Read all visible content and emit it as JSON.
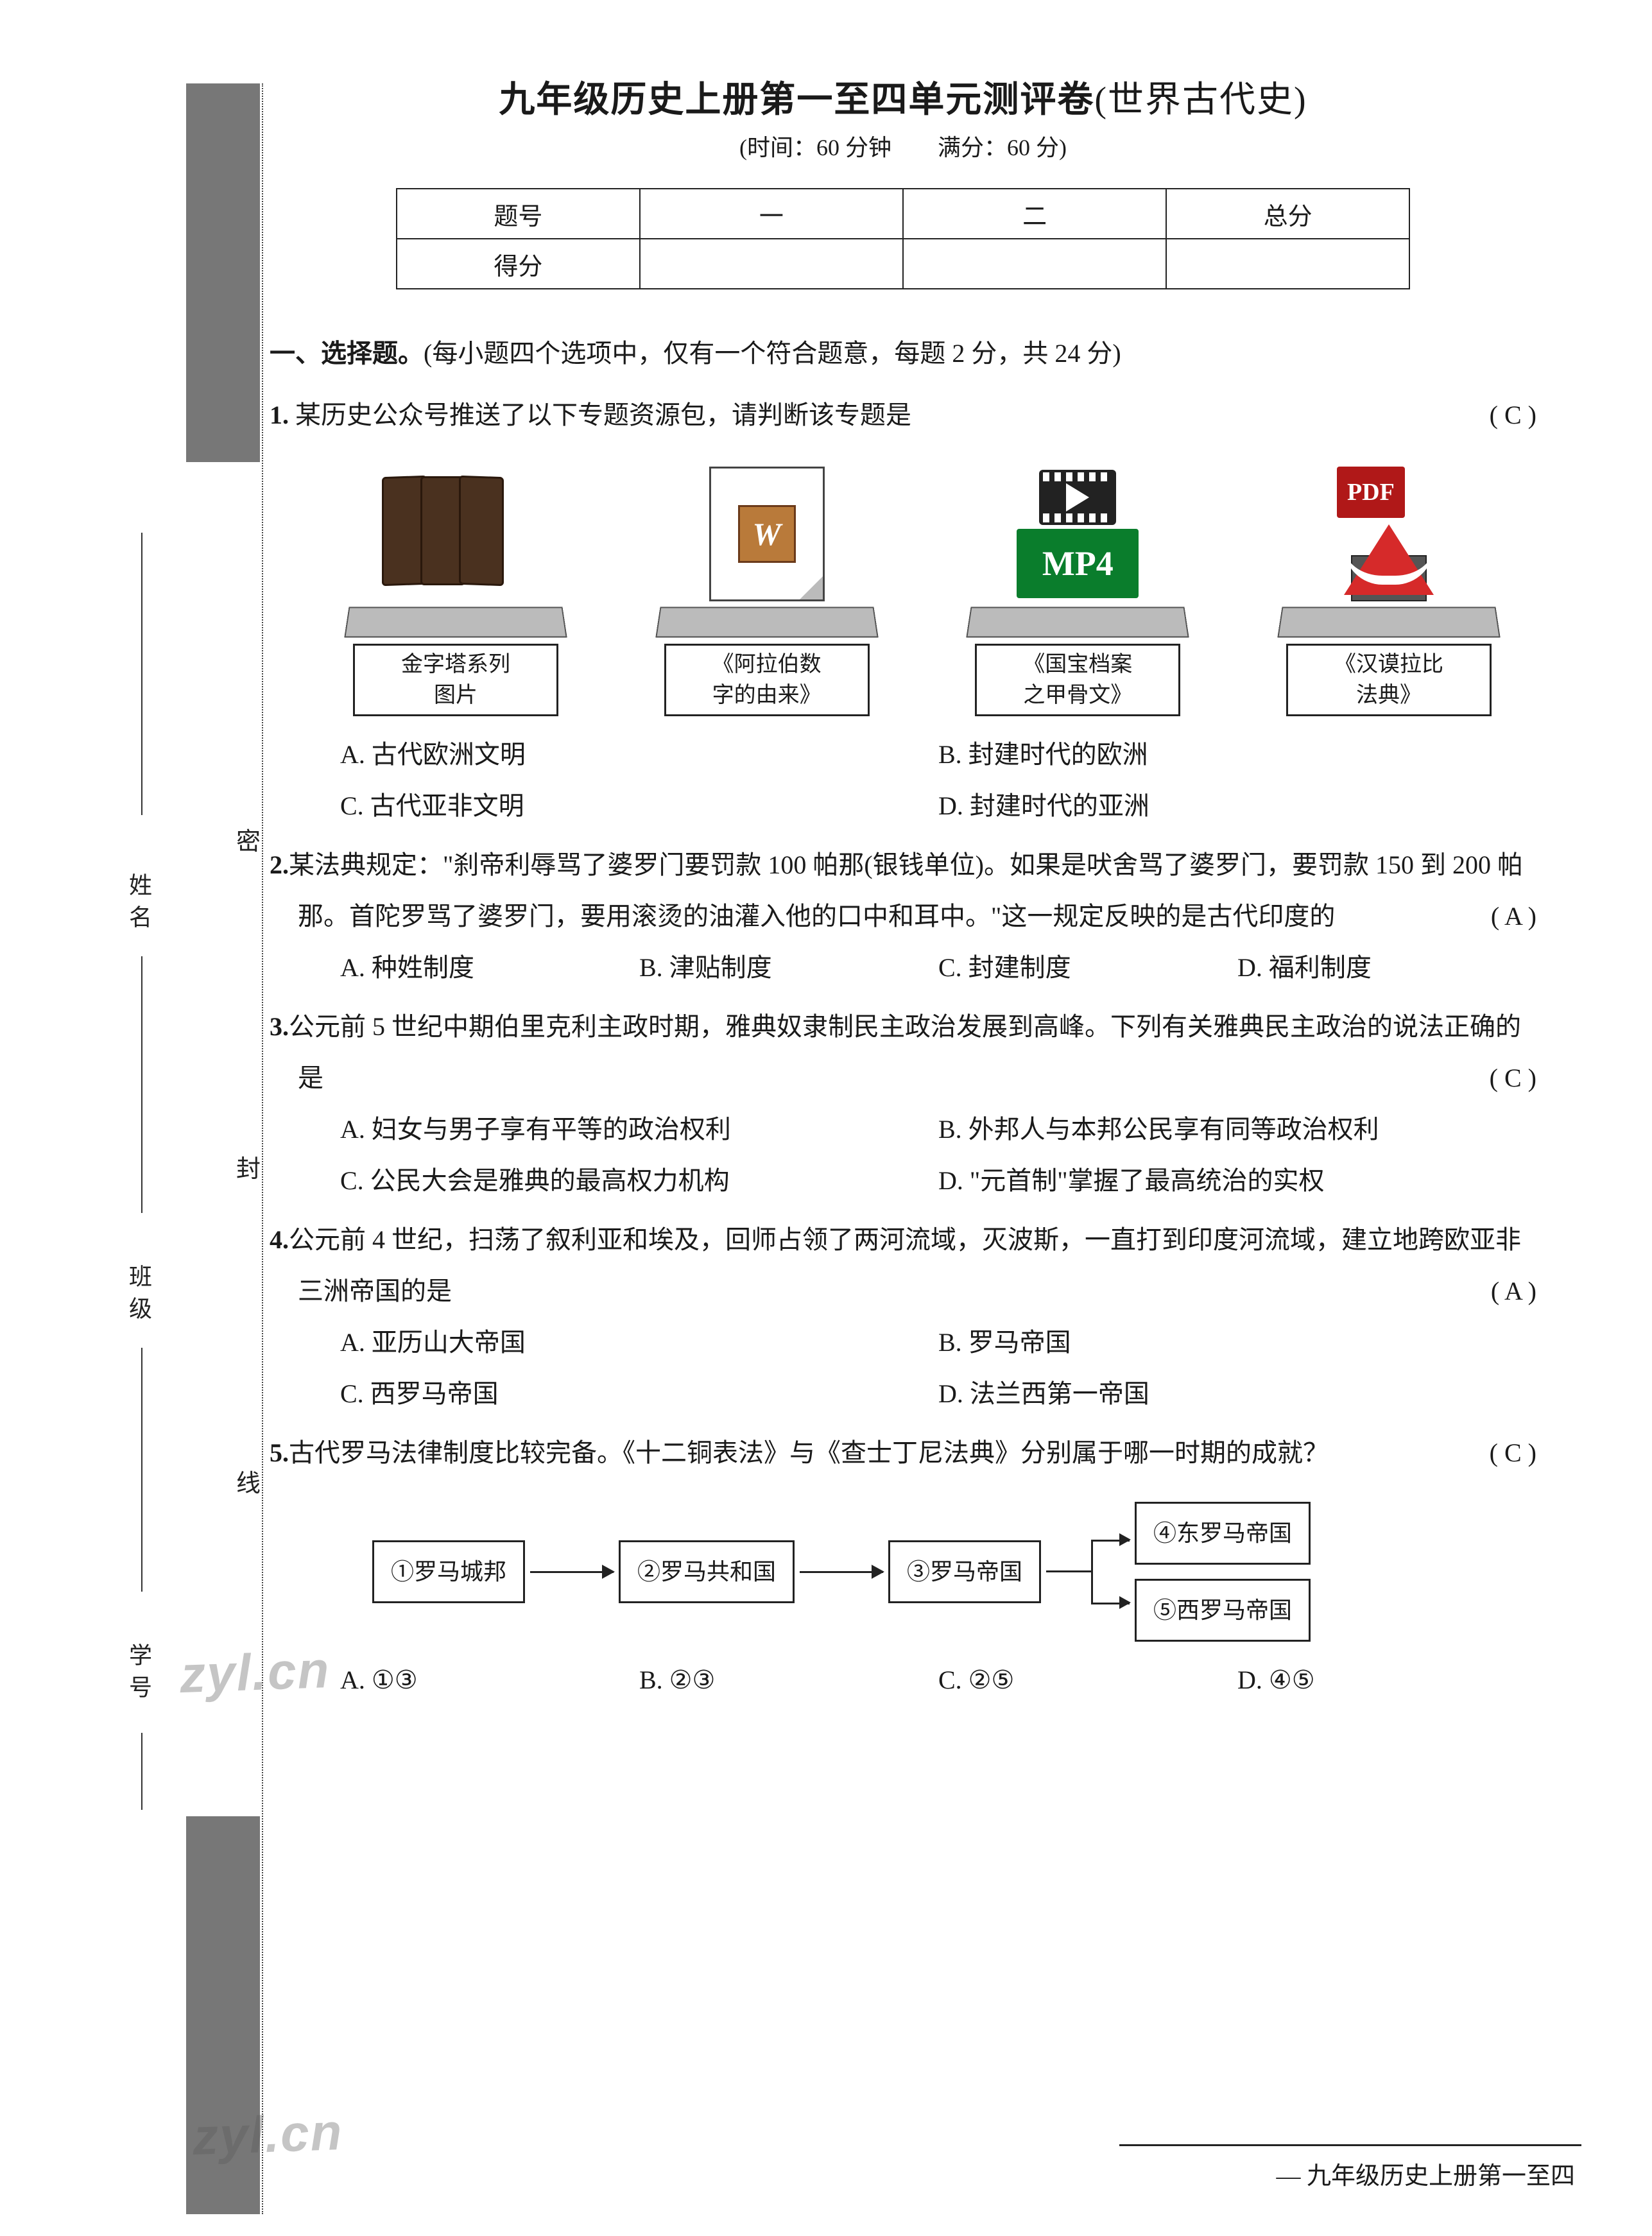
{
  "colors": {
    "text": "#1a1a1a",
    "background": "#ffffff",
    "stub": "#777777",
    "border": "#222222",
    "book": "#4a311f",
    "book_border": "#2a180c",
    "doc_w_bg": "#b97a3a",
    "doc_w_border": "#6b3a1a",
    "mp4_bg": "#0a7d2c",
    "pdf_red": "#b01818",
    "pdf_logo": "#d62a2a",
    "adobe_bg": "#555555",
    "plinth": "#bbbbbb",
    "watermark": "rgba(90,90,90,0.35)"
  },
  "title_main": "九年级历史上册第一至四单元测评卷",
  "title_sub": "(世界古代史)",
  "time_line": "(时间：60 分钟　　满分：60 分)",
  "score_table": {
    "headers": [
      "题号",
      "一",
      "二",
      "总分"
    ],
    "row_label": "得分"
  },
  "side_labels": {
    "xingming": "姓名",
    "banji": "班级",
    "xuehao": "学号",
    "mi": "密",
    "feng": "封",
    "xian": "线"
  },
  "section1": {
    "heading": "一、选择题。",
    "note": "(每小题四个选项中，仅有一个符合题意，每题 2 分，共 24 分)"
  },
  "q1": {
    "num": "1.",
    "stem": "某历史公众号推送了以下专题资源包，请判断该专题是",
    "answer": "( C )",
    "cards": [
      {
        "label": "金字塔系列\n图片"
      },
      {
        "label": "《阿拉伯数\n字的由来》"
      },
      {
        "label": "《国宝档案\n之甲骨文》",
        "mp4": "MP4"
      },
      {
        "label": "《汉谟拉比\n法典》",
        "pdf_tag": "PDF",
        "adobe": "Adobe"
      }
    ],
    "opts": {
      "A": "A. 古代欧洲文明",
      "B": "B. 封建时代的欧洲",
      "C": "C. 古代亚非文明",
      "D": "D. 封建时代的亚洲"
    }
  },
  "q2": {
    "num": "2.",
    "stem": "某法典规定：\"刹帝利辱骂了婆罗门要罚款 100 帕那(银钱单位)。如果是吠舍骂了婆罗门，要罚款 150 到 200 帕那。首陀罗骂了婆罗门，要用滚烫的油灌入他的口中和耳中。\"这一规定反映的是古代印度的",
    "answer": "( A )",
    "opts": {
      "A": "A. 种姓制度",
      "B": "B. 津贴制度",
      "C": "C. 封建制度",
      "D": "D. 福利制度"
    }
  },
  "q3": {
    "num": "3.",
    "stem": "公元前 5 世纪中期伯里克利主政时期，雅典奴隶制民主政治发展到高峰。下列有关雅典民主政治的说法正确的是",
    "answer": "( C )",
    "opts": {
      "A": "A. 妇女与男子享有平等的政治权利",
      "B": "B. 外邦人与本邦公民享有同等政治权利",
      "C": "C. 公民大会是雅典的最高权力机构",
      "D": "D. \"元首制\"掌握了最高统治的实权"
    }
  },
  "q4": {
    "num": "4.",
    "stem": "公元前 4 世纪，扫荡了叙利亚和埃及，回师占领了两河流域，灭波斯，一直打到印度河流域，建立地跨欧亚非三洲帝国的是",
    "answer": "( A )",
    "opts": {
      "A": "A. 亚历山大帝国",
      "B": "B. 罗马帝国",
      "C": "C. 西罗马帝国",
      "D": "D. 法兰西第一帝国"
    }
  },
  "q5": {
    "num": "5.",
    "stem": "古代罗马法律制度比较完备。《十二铜表法》与《查士丁尼法典》分别属于哪一时期的成就？",
    "answer": "( C )",
    "flow": {
      "b1": "①罗马城邦",
      "b2": "②罗马共和国",
      "b3": "③罗马帝国",
      "b4": "④东罗马帝国",
      "b5": "⑤西罗马帝国"
    },
    "opts": {
      "A": "A. ①③",
      "B": "B. ②③",
      "C": "C. ②⑤",
      "D": "D. ④⑤"
    }
  },
  "watermark": "zyl.cn",
  "footer": "九年级历史上册第一至四"
}
